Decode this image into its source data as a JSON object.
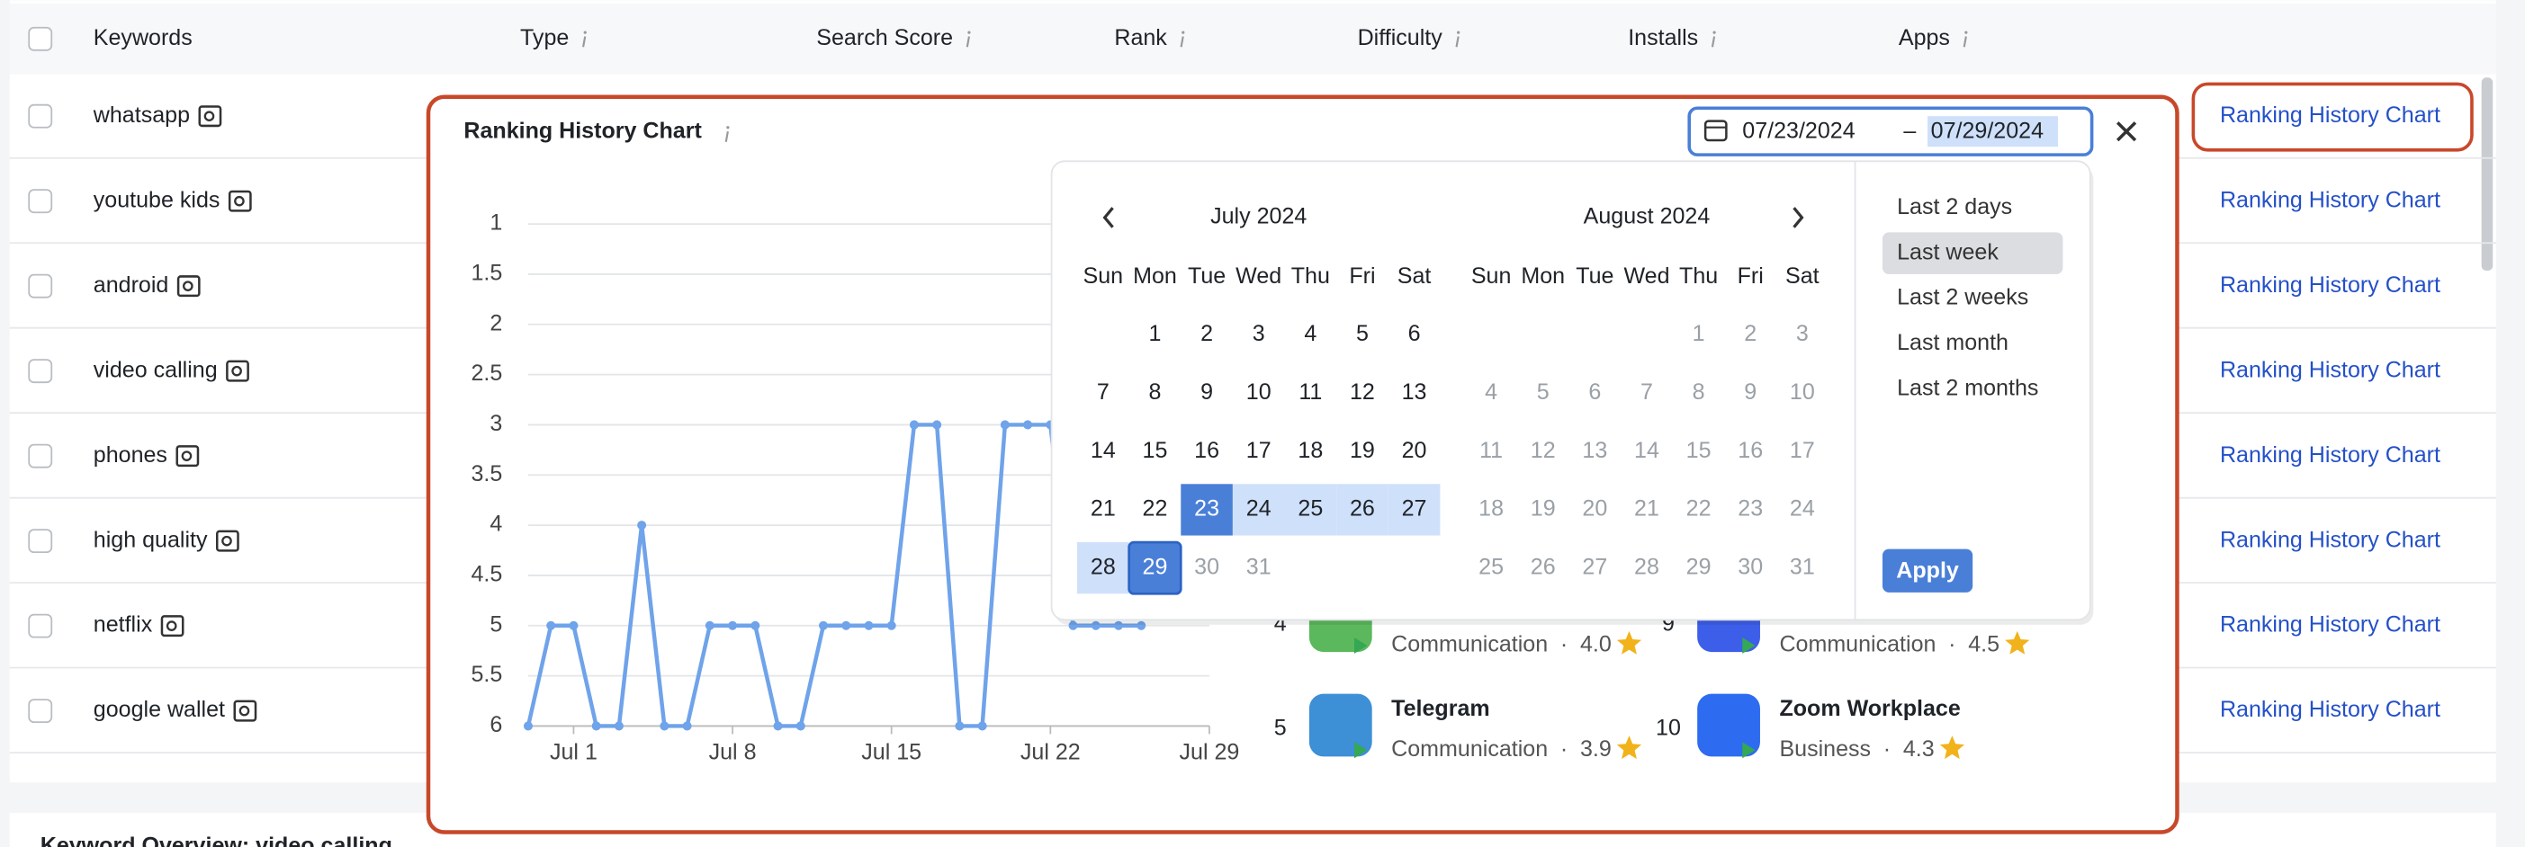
{
  "table": {
    "columns": [
      "Keywords",
      "Type",
      "Search Score",
      "Rank",
      "Difficulty",
      "Installs",
      "Apps"
    ],
    "rows": [
      {
        "keyword": "whatsapp",
        "link": "Ranking History Chart"
      },
      {
        "keyword": "youtube kids",
        "link": "Ranking History Chart"
      },
      {
        "keyword": "android",
        "link": "Ranking History Chart"
      },
      {
        "keyword": "video calling",
        "link": "Ranking History Chart"
      },
      {
        "keyword": "phones",
        "link": "Ranking History Chart"
      },
      {
        "keyword": "high quality",
        "link": "Ranking History Chart"
      },
      {
        "keyword": "netflix",
        "link": "Ranking History Chart"
      },
      {
        "keyword": "google wallet",
        "link": "Ranking History Chart"
      }
    ]
  },
  "section_title": "Keyword Overview: video calling",
  "popup": {
    "title": "Ranking History Chart",
    "date_start": "07/23/2024",
    "date_separator": "–",
    "date_end": "07/29/2024",
    "chart": {
      "type": "line",
      "color": "#6fa3ea",
      "x": [
        -1,
        0,
        1,
        2,
        3,
        4,
        5,
        6,
        7,
        8,
        9,
        10,
        11,
        12,
        13,
        14,
        15,
        16,
        17,
        18,
        19,
        20,
        21,
        22,
        23,
        24,
        25,
        26
      ],
      "values": [
        6,
        5,
        5,
        6,
        6,
        4,
        6,
        6,
        5,
        5,
        5,
        6,
        6,
        5,
        5,
        5,
        5,
        3,
        3,
        6,
        6,
        3,
        3,
        3,
        5,
        5,
        5,
        5
      ],
      "xlim": [
        -1,
        29
      ],
      "xticks": [
        {
          "value": 1,
          "label": "Jul 1"
        },
        {
          "value": 8,
          "label": "Jul 8"
        },
        {
          "value": 15,
          "label": "Jul 15"
        },
        {
          "value": 22,
          "label": "Jul 22"
        },
        {
          "value": 29,
          "label": "Jul 29"
        }
      ],
      "ylim": [
        6,
        1
      ],
      "yticks": [
        1,
        1.5,
        2,
        2.5,
        3,
        3.5,
        4,
        4.5,
        5,
        5.5,
        6
      ],
      "grid": true,
      "reversed": true
    },
    "apps": [
      {
        "rank": 4,
        "category": "Communication",
        "rating": "4.0"
      },
      {
        "rank": 9,
        "category": "Communication",
        "rating": "4.5"
      },
      {
        "rank": 5,
        "name": "Telegram",
        "category": "Communication",
        "rating": "3.9"
      },
      {
        "rank": 10,
        "name": "Zoom Workplace",
        "category": "Business",
        "rating": "4.3"
      }
    ],
    "rating_separator": "·",
    "calendar": {
      "weekdays": [
        "Sun",
        "Mon",
        "Tue",
        "Wed",
        "Thu",
        "Fri",
        "Sat"
      ],
      "months": [
        {
          "title": "July 2024",
          "days": [
            1,
            2,
            3,
            4,
            5,
            6,
            7,
            8,
            9,
            10,
            11,
            12,
            13,
            14,
            15,
            16,
            17,
            18,
            19,
            20,
            21,
            22,
            23,
            24,
            25,
            26,
            27,
            28,
            29,
            30,
            31
          ]
        },
        {
          "title": "August 2024",
          "days": [
            1,
            2,
            3,
            4,
            5,
            6,
            7,
            8,
            9,
            10,
            11,
            12,
            13,
            14,
            15,
            16,
            17,
            18,
            19,
            20,
            21,
            22,
            23,
            24,
            25,
            26,
            27,
            28,
            29,
            30,
            31
          ]
        }
      ],
      "presets": [
        "Last 2 days",
        "Last week",
        "Last 2 weeks",
        "Last month",
        "Last 2 months"
      ],
      "selected_preset": 1,
      "apply": "Apply"
    }
  }
}
